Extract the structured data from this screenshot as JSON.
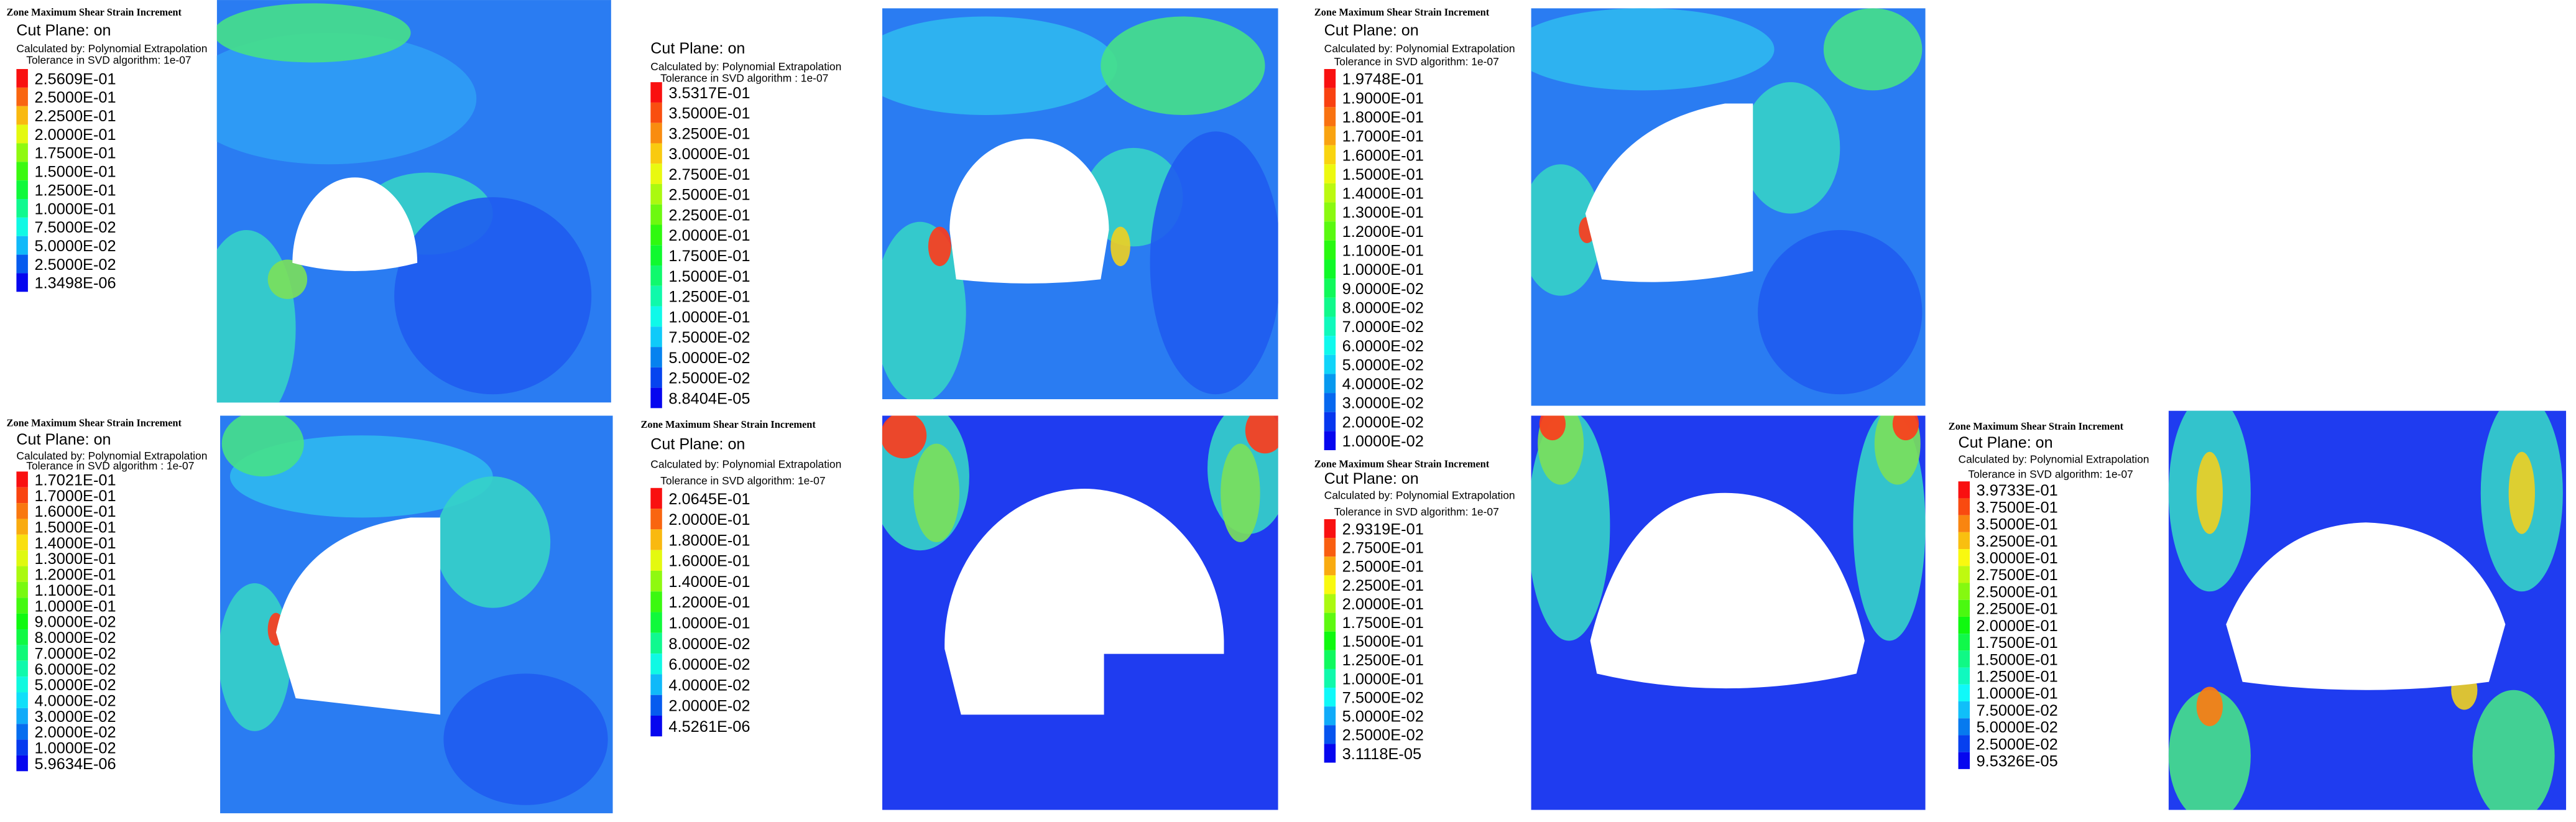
{
  "panels": [
    {
      "legend": {
        "title": "Zone Maximum Shear Strain Increment",
        "cut_plane": "Cut Plane: on",
        "calculated_by": "Calculated by: Polynomial Extrapolation",
        "tolerance": "Tolerance in SVD algorithm: 1e-07",
        "levels": [
          "2.5609E-01",
          "2.5000E-01",
          "2.2500E-01",
          "2.0000E-01",
          "1.7500E-01",
          "1.5000E-01",
          "1.2500E-01",
          "1.0000E-01",
          "7.5000E-02",
          "5.0000E-02",
          "2.5000E-02",
          "1.3498E-06"
        ]
      }
    },
    {
      "legend": {
        "cut_plane": "Cut Plane: on",
        "calculated_by": "Calculated by: Polynomial Extrapolation",
        "tolerance": "Tolerance in SVD algorithm : 1e-07",
        "levels": [
          "3.5317E-01",
          "3.5000E-01",
          "3.2500E-01",
          "3.0000E-01",
          "2.7500E-01",
          "2.5000E-01",
          "2.2500E-01",
          "2.0000E-01",
          "1.7500E-01",
          "1.5000E-01",
          "1.2500E-01",
          "1.0000E-01",
          "7.5000E-02",
          "5.0000E-02",
          "2.5000E-02",
          "8.8404E-05"
        ]
      }
    },
    {
      "legend": {
        "title": "Zone Maximum Shear Strain Increment",
        "cut_plane": "Cut Plane: on",
        "calculated_by": "Calculated by: Polynomial Extrapolation",
        "tolerance": "Tolerance in SVD algorithm: 1e-07",
        "levels": [
          "1.9748E-01",
          "1.9000E-01",
          "1.8000E-01",
          "1.7000E-01",
          "1.6000E-01",
          "1.5000E-01",
          "1.4000E-01",
          "1.3000E-01",
          "1.2000E-01",
          "1.1000E-01",
          "1.0000E-01",
          "9.0000E-02",
          "8.0000E-02",
          "7.0000E-02",
          "6.0000E-02",
          "5.0000E-02",
          "4.0000E-02",
          "3.0000E-02",
          "2.0000E-02",
          "1.0000E-02"
        ]
      }
    },
    {
      "legend": {
        "title": "Zone Maximum Shear Strain Increment",
        "cut_plane": "Cut Plane: on",
        "calculated_by": "Calculated by: Polynomial Extrapolation",
        "tolerance": "Tolerance in SVD algorithm : 1e-07",
        "levels": [
          "1.7021E-01",
          "1.7000E-01",
          "1.6000E-01",
          "1.5000E-01",
          "1.4000E-01",
          "1.3000E-01",
          "1.2000E-01",
          "1.1000E-01",
          "1.0000E-01",
          "9.0000E-02",
          "8.0000E-02",
          "7.0000E-02",
          "6.0000E-02",
          "5.0000E-02",
          "4.0000E-02",
          "3.0000E-02",
          "2.0000E-02",
          "1.0000E-02",
          "5.9634E-06"
        ]
      }
    },
    {
      "legend": {
        "title": "Zone Maximum Shear Strain Increment",
        "cut_plane": "Cut Plane: on",
        "calculated_by": "Calculated by: Polynomial Extrapolation",
        "tolerance": "Tolerance in SVD algorithm: 1e-07",
        "levels": [
          "2.0645E-01",
          "2.0000E-01",
          "1.8000E-01",
          "1.6000E-01",
          "1.4000E-01",
          "1.2000E-01",
          "1.0000E-01",
          "8.0000E-02",
          "6.0000E-02",
          "4.0000E-02",
          "2.0000E-02",
          "4.5261E-06"
        ]
      }
    },
    {
      "legend": {
        "title": "Zone Maximum Shear Strain Increment",
        "cut_plane": "Cut Plane: on",
        "calculated_by": "Calculated by: Polynomial Extrapolation",
        "tolerance": "Tolerance in SVD algorithm: 1e-07",
        "levels": [
          "2.9319E-01",
          "2.7500E-01",
          "2.5000E-01",
          "2.2500E-01",
          "2.0000E-01",
          "1.7500E-01",
          "1.5000E-01",
          "1.2500E-01",
          "1.0000E-01",
          "7.5000E-02",
          "5.0000E-02",
          "2.5000E-02",
          "3.1118E-05"
        ]
      }
    },
    {
      "legend": {
        "title": "Zone Maximum Shear Strain Increment",
        "cut_plane": "Cut Plane: on",
        "calculated_by": "Calculated by: Polynomial Extrapolation",
        "tolerance": "Tolerance in SVD algorithm: 1e-07",
        "levels": [
          "3.9733E-01",
          "3.7500E-01",
          "3.5000E-01",
          "3.2500E-01",
          "3.0000E-01",
          "2.7500E-01",
          "2.5000E-01",
          "2.2500E-01",
          "2.0000E-01",
          "1.7500E-01",
          "1.5000E-01",
          "1.2500E-01",
          "1.0000E-01",
          "7.5000E-02",
          "5.0000E-02",
          "2.5000E-02",
          "9.5326E-05"
        ]
      }
    }
  ]
}
